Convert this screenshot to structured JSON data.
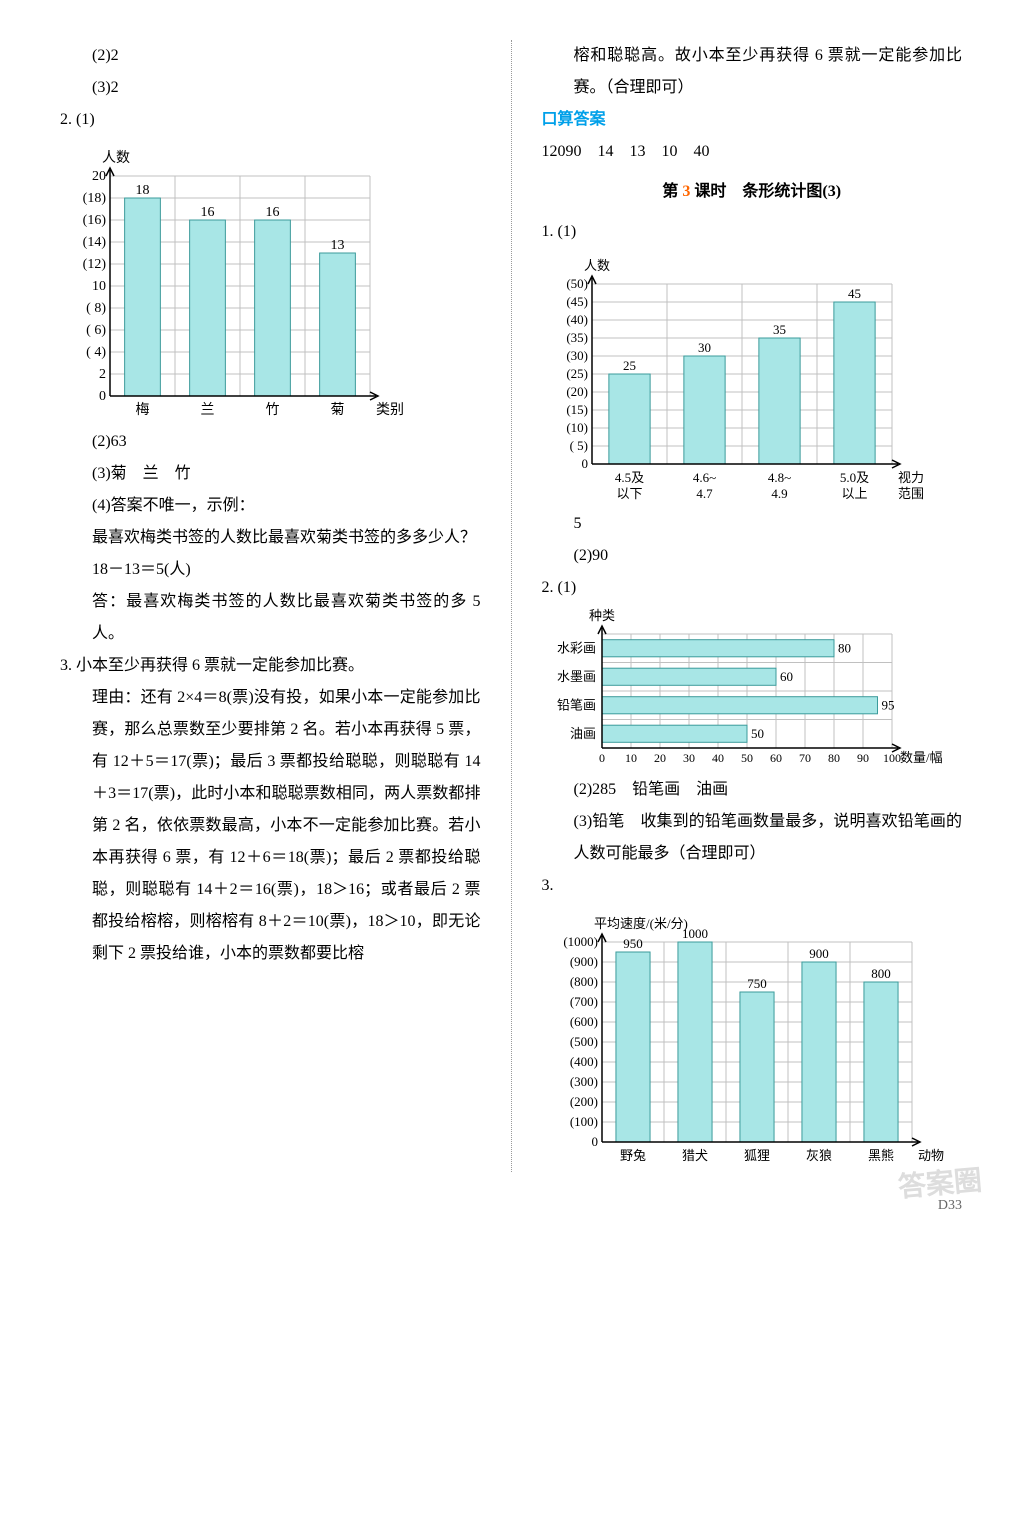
{
  "left": {
    "l1": "(2)2",
    "l2": "(3)2",
    "l3": "2. (1)",
    "chart1": {
      "type": "bar",
      "ylabel": "人数",
      "xlabel": "类别",
      "categories": [
        "梅",
        "兰",
        "竹",
        "菊"
      ],
      "values": [
        18,
        16,
        16,
        13
      ],
      "ymax": 20,
      "ystep": 2,
      "bar_color": "#a8e6e6",
      "bar_border": "#3b9b9b",
      "grid_color": "#c0c0c0",
      "axis_color": "#000",
      "label_fontsize": 14
    },
    "l4": "(2)63",
    "l5": "(3)菊　兰　竹",
    "l6": "(4)答案不唯一，示例：",
    "l7": "最喜欢梅类书签的人数比最喜欢菊类书签的多多少人？",
    "l8": "18－13＝5(人)",
    "l9": "答：最喜欢梅类书签的人数比最喜欢菊类书签的多 5 人。",
    "l10": "3. 小本至少再获得 6 票就一定能参加比赛。",
    "l11": "理由：还有 2×4＝8(票)没有投，如果小本一定能参加比赛，那么总票数至少要排第 2 名。若小本再获得 5 票，有 12＋5＝17(票)；最后 3 票都投给聪聪，则聪聪有 14＋3＝17(票)，此时小本和聪聪票数相同，两人票数都排第 2 名，依依票数最高，小本不一定能参加比赛。若小本再获得 6 票，有 12＋6＝18(票)；最后 2 票都投给聪聪，则聪聪有 14＋2＝16(票)，18＞16；或者最后 2 票都投给榕榕，则榕榕有 8＋2＝10(票)，18＞10，即无论剩下 2 票投给谁，小本的票数都要比榕"
  },
  "right": {
    "r1": "榕和聪聪高。故小本至少再获得 6 票就一定能参加比赛。（合理即可）",
    "r2": "口算答案",
    "r3": "12090　14　13　10　40",
    "title": {
      "pre": "第 ",
      "num": "3",
      "post": " 课时　条形统计图(3)"
    },
    "r4": "1. (1)",
    "chart2": {
      "type": "bar",
      "ylabel": "人数",
      "xlabel_top": "视力",
      "xlabel_bot": "范围",
      "categories_top": [
        "4.5及",
        "4.6~",
        "4.8~",
        "5.0及"
      ],
      "categories_bot": [
        "以下",
        "4.7",
        "4.9",
        "以上"
      ],
      "values": [
        25,
        30,
        35,
        45
      ],
      "ymax": 50,
      "ystep": 5,
      "bar_color": "#a8e6e6",
      "bar_border": "#3b9b9b",
      "grid_color": "#c0c0c0",
      "axis_color": "#000",
      "label_fontsize": 13
    },
    "r5": "5",
    "r6": "(2)90",
    "r7": "2. (1)",
    "chart3": {
      "type": "hbar",
      "ylabel": "种类",
      "xlabel": "数量/幅",
      "categories": [
        "水彩画",
        "水墨画",
        "铅笔画",
        "油画"
      ],
      "values": [
        80,
        60,
        95,
        50
      ],
      "xmax": 100,
      "xstep": 10,
      "bar_color": "#a8e6e6",
      "bar_border": "#3b9b9b",
      "grid_color": "#c0c0c0",
      "axis_color": "#000",
      "label_fontsize": 13
    },
    "r8": "(2)285　铅笔画　油画",
    "r9": "(3)铅笔　收集到的铅笔画数量最多，说明喜欢铅笔画的人数可能最多（合理即可）",
    "r10": "3.",
    "chart4": {
      "type": "bar",
      "ylabel": "平均速度/(米/分)",
      "xlabel": "动物",
      "categories": [
        "野兔",
        "猎犬",
        "狐狸",
        "灰狼",
        "黑熊"
      ],
      "values": [
        950,
        1000,
        750,
        900,
        800
      ],
      "ymax": 1000,
      "ystep": 100,
      "bar_color": "#a8e6e6",
      "bar_border": "#3b9b9b",
      "grid_color": "#c0c0c0",
      "axis_color": "#000",
      "label_fontsize": 13
    }
  },
  "footer": "D33",
  "watermark": "答案圈"
}
